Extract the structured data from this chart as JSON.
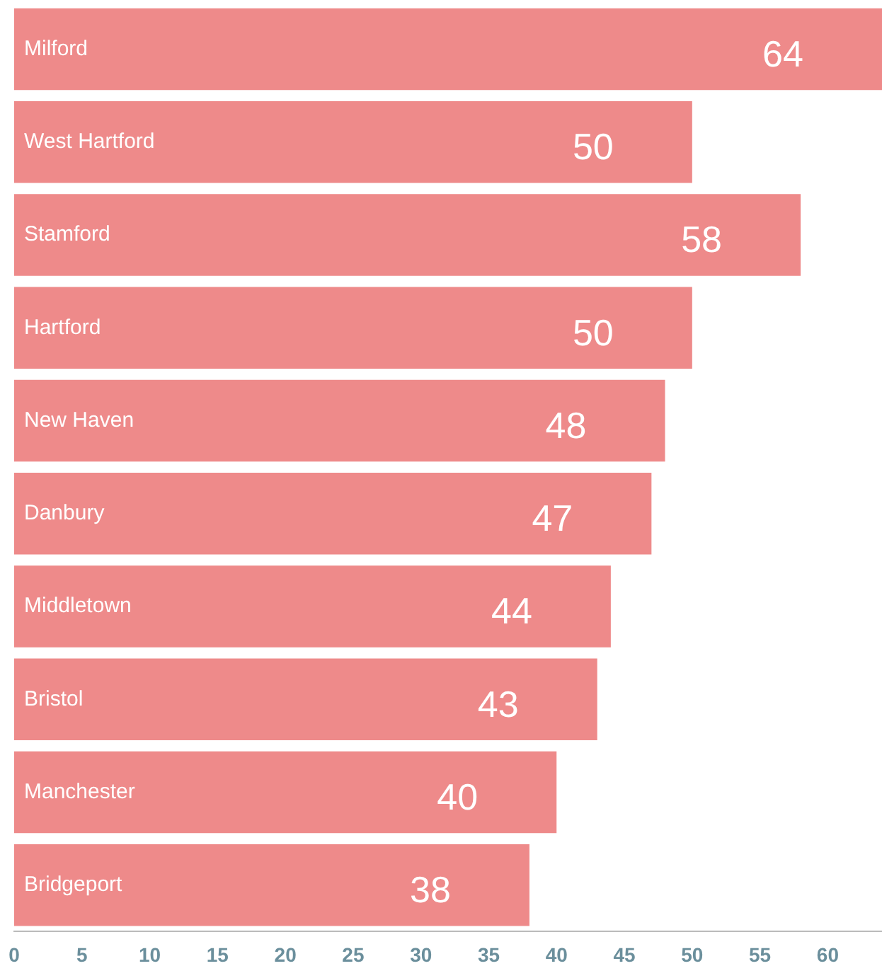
{
  "chart_data": {
    "type": "bar",
    "orientation": "horizontal",
    "categories": [
      "Milford",
      "West Hartford",
      "Stamford",
      "Hartford",
      "New Haven",
      "Danbury",
      "Middletown",
      "Bristol",
      "Manchester",
      "Bridgeport"
    ],
    "values": [
      64,
      50,
      58,
      50,
      48,
      47,
      44,
      43,
      40,
      38
    ],
    "value_labels": [
      "64",
      "50",
      "58",
      "50",
      "48",
      "47",
      "44",
      "43",
      "40",
      "38"
    ],
    "color": "#ee8a8a",
    "xlim": [
      0,
      64
    ],
    "xticks": [
      0,
      5,
      10,
      15,
      20,
      25,
      30,
      35,
      40,
      45,
      50,
      55,
      60
    ],
    "grid": false,
    "legend": false
  }
}
